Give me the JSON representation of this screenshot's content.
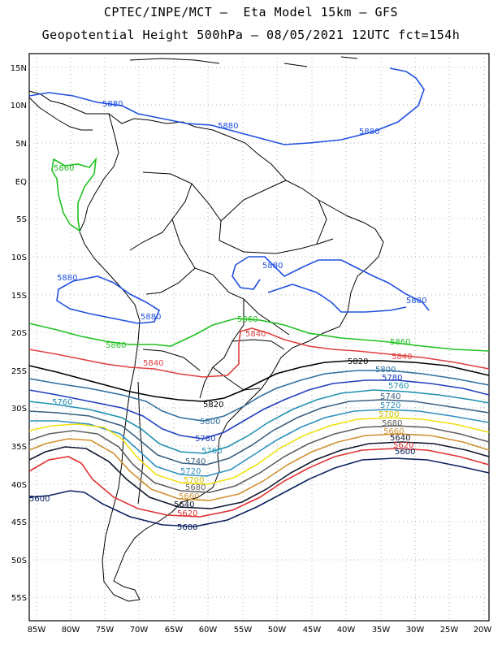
{
  "header": {
    "title_line1": "CPTEC/INPE/MCT –  Eta Model 15km – GFS",
    "title_line2": "Geopotential Height 500hPa – 08/05/2021 12UTC fct=154h"
  },
  "map": {
    "lat_labels": [
      "15N",
      "10N",
      "5N",
      "EQ",
      "5S",
      "10S",
      "15S",
      "20S",
      "25S",
      "30S",
      "35S",
      "40S",
      "45S",
      "50S",
      "55S"
    ],
    "lon_labels": [
      "85W",
      "80W",
      "75W",
      "70W",
      "65W",
      "60W",
      "55W",
      "50W",
      "45W",
      "40W",
      "35W",
      "30W",
      "25W",
      "20W"
    ],
    "colors": {
      "c5580": "#1a1a66",
      "c5600": "#0a2060",
      "c5620": "#e03030",
      "c5640": "#101830",
      "c5660": "#d09030",
      "c5680": "#606060",
      "c5700": "#f0e010",
      "c5720": "#3090c0",
      "c5740": "#3a6080",
      "c5760": "#2090b0",
      "c5780": "#2040c0",
      "c5800": "#3070a0",
      "c5820": "#000000",
      "c5840": "#e04040",
      "c5860": "#20c020",
      "c5880": "#2050e0",
      "land": "#000000",
      "grid": "#999999"
    },
    "contour_labels": {
      "l5880_a": "5880",
      "l5880_b": "5880",
      "l5880_c": "5880",
      "l5880_d": "5880",
      "l5880_e": "5880",
      "l5880_f": "5880",
      "l5880_g": "5880",
      "l5860_a": "5860",
      "l5860_b": "5860",
      "l5860_c": "5860",
      "l5860_d": "5860",
      "l5840_a": "5840",
      "l5840_b": "5840",
      "l5840_c": "5840",
      "l5820_a": "5820",
      "l5820_b": "5820",
      "l5800_a": "5800",
      "l5800_b": "5800",
      "l5780_a": "5780",
      "l5780_b": "5780",
      "l5760_a": "5760",
      "l5760_b": "5760",
      "l5760_c": "5760",
      "l5740_a": "5740",
      "l5740_b": "5740",
      "l5720_a": "5720",
      "l5720_b": "5720",
      "l5700_a": "5700",
      "l5700_b": "5700",
      "l5680_a": "5680",
      "l5680_b": "5680",
      "l5660_a": "5660",
      "l5660_b": "5660",
      "l5640_a": "5640",
      "l5640_b": "5640",
      "l5620_a": "5620",
      "l5620_b": "5620",
      "l5600_a": "5600",
      "l5600_b": "5600",
      "l5600_c": "5600"
    }
  }
}
